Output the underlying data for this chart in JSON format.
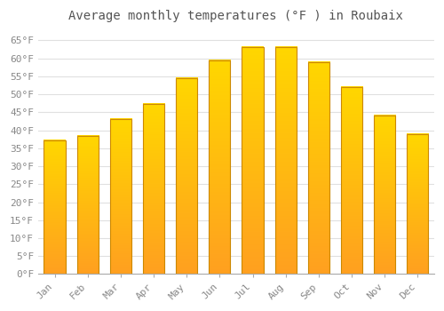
{
  "title": "Average monthly temperatures (°F ) in Roubaix",
  "months": [
    "Jan",
    "Feb",
    "Mar",
    "Apr",
    "May",
    "Jun",
    "Jul",
    "Aug",
    "Sep",
    "Oct",
    "Nov",
    "Dec"
  ],
  "values": [
    37.2,
    38.5,
    43.0,
    47.2,
    54.5,
    59.5,
    63.0,
    63.0,
    59.0,
    52.0,
    44.0,
    39.0
  ],
  "bar_color_top": "#FFD700",
  "bar_color_bottom": "#FFA020",
  "bar_edge_color": "#CC8800",
  "background_color": "#FFFFFF",
  "grid_color": "#e0e0e0",
  "ylim": [
    0,
    68
  ],
  "ytick_step": 5,
  "title_fontsize": 10,
  "tick_fontsize": 8,
  "font_family": "monospace"
}
